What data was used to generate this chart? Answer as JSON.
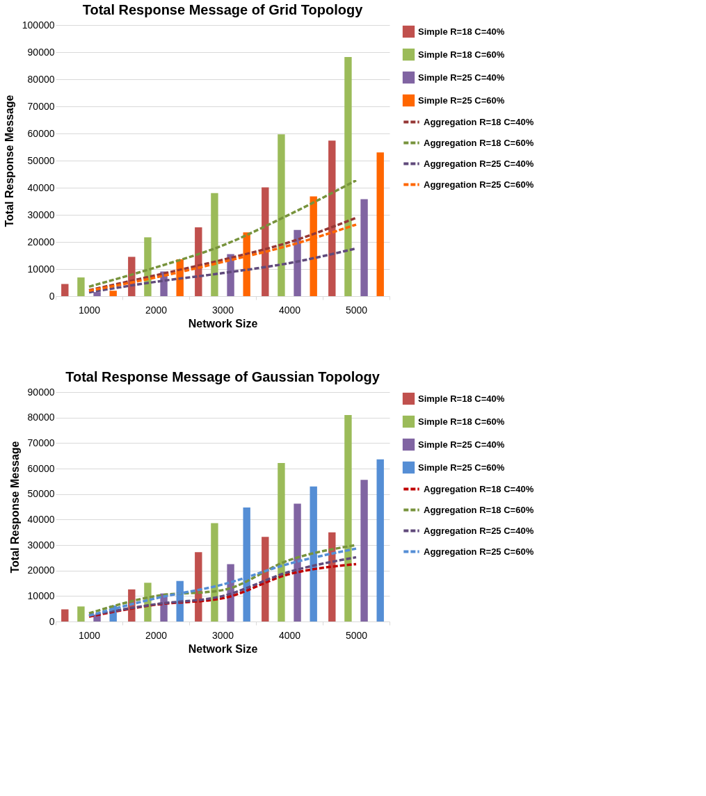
{
  "chart_data": [
    {
      "type": "bar",
      "title": "Total Response Message of Grid Topology",
      "xlabel": "Network Size",
      "ylabel": "Total Response Message",
      "categories": [
        "1000",
        "2000",
        "3000",
        "4000",
        "5000"
      ],
      "ylim": [
        0,
        100000
      ],
      "yticks": [
        0,
        10000,
        20000,
        30000,
        40000,
        50000,
        60000,
        70000,
        80000,
        90000,
        100000
      ],
      "grid": "y",
      "legend": "right",
      "series": [
        {
          "name": "Simple R=18 C=40%",
          "color": "#c0504d",
          "values": [
            4500,
            14500,
            25400,
            40100,
            57400
          ]
        },
        {
          "name": "Simple R=18 C=60%",
          "color": "#9bbb59",
          "values": [
            6900,
            21700,
            38000,
            59700,
            88200
          ]
        },
        {
          "name": "Simple R=25 C=40%",
          "color": "#8064a2",
          "values": [
            1500,
            9100,
            15500,
            24400,
            35800
          ]
        },
        {
          "name": "Simple R=25 C=60%",
          "color": "#ff6600",
          "values": [
            2000,
            13600,
            23500,
            36800,
            53000
          ]
        },
        {
          "name": "Aggregation R=18 C=40%",
          "type": "line",
          "line_style": "dashed",
          "color": "#953735",
          "values": [
            2200,
            7700,
            13400,
            19900,
            28900
          ]
        },
        {
          "name": "Aggregation R=18 C=60%",
          "type": "line",
          "line_style": "dashed",
          "color": "#77933c",
          "values": [
            3500,
            10600,
            18700,
            30100,
            42700
          ]
        },
        {
          "name": "Aggregation R=25 C=40%",
          "type": "line",
          "line_style": "dashed",
          "color": "#604a7b",
          "values": [
            1400,
            5300,
            8500,
            12200,
            17600
          ]
        },
        {
          "name": "Aggregation R=25 C=60%",
          "type": "line",
          "line_style": "dashed",
          "color": "#ff6600",
          "values": [
            2000,
            6900,
            12600,
            18700,
            26400
          ]
        }
      ]
    },
    {
      "type": "bar",
      "title": "Total Response Message of Gaussian Topology",
      "xlabel": "Network Size",
      "ylabel": "Total Response Message",
      "categories": [
        "1000",
        "2000",
        "3000",
        "4000",
        "5000"
      ],
      "ylim": [
        0,
        90000
      ],
      "yticks": [
        0,
        10000,
        20000,
        30000,
        40000,
        50000,
        60000,
        70000,
        80000,
        90000
      ],
      "grid": "y",
      "legend": "right",
      "series": [
        {
          "name": "Simple R=18 C=40%",
          "color": "#c0504d",
          "values": [
            4800,
            12600,
            27200,
            33200,
            35000
          ]
        },
        {
          "name": "Simple R=18 C=60%",
          "color": "#9bbb59",
          "values": [
            5900,
            15200,
            38600,
            62200,
            81000
          ]
        },
        {
          "name": "Simple R=25 C=40%",
          "color": "#8064a2",
          "values": [
            2700,
            11000,
            22500,
            46200,
            55600
          ]
        },
        {
          "name": "Simple R=25 C=60%",
          "color": "#558ed5",
          "values": [
            6300,
            15900,
            44700,
            53000,
            63600
          ]
        },
        {
          "name": "Aggregation R=18 C=40%",
          "type": "line",
          "line_style": "dashed",
          "color": "#c00000",
          "values": [
            1900,
            6600,
            9100,
            18600,
            22500
          ]
        },
        {
          "name": "Aggregation R=18 C=60%",
          "type": "line",
          "line_style": "dashed",
          "color": "#77933c",
          "values": [
            3200,
            10000,
            12300,
            24100,
            30000
          ]
        },
        {
          "name": "Aggregation R=25 C=40%",
          "type": "line",
          "line_style": "dashed",
          "color": "#604a7b",
          "values": [
            2400,
            6800,
            10000,
            19500,
            25200
          ]
        },
        {
          "name": "Aggregation R=25 C=60%",
          "type": "line",
          "line_style": "dashed",
          "color": "#558ed5",
          "values": [
            2300,
            9100,
            14500,
            22700,
            28600
          ]
        }
      ]
    }
  ]
}
